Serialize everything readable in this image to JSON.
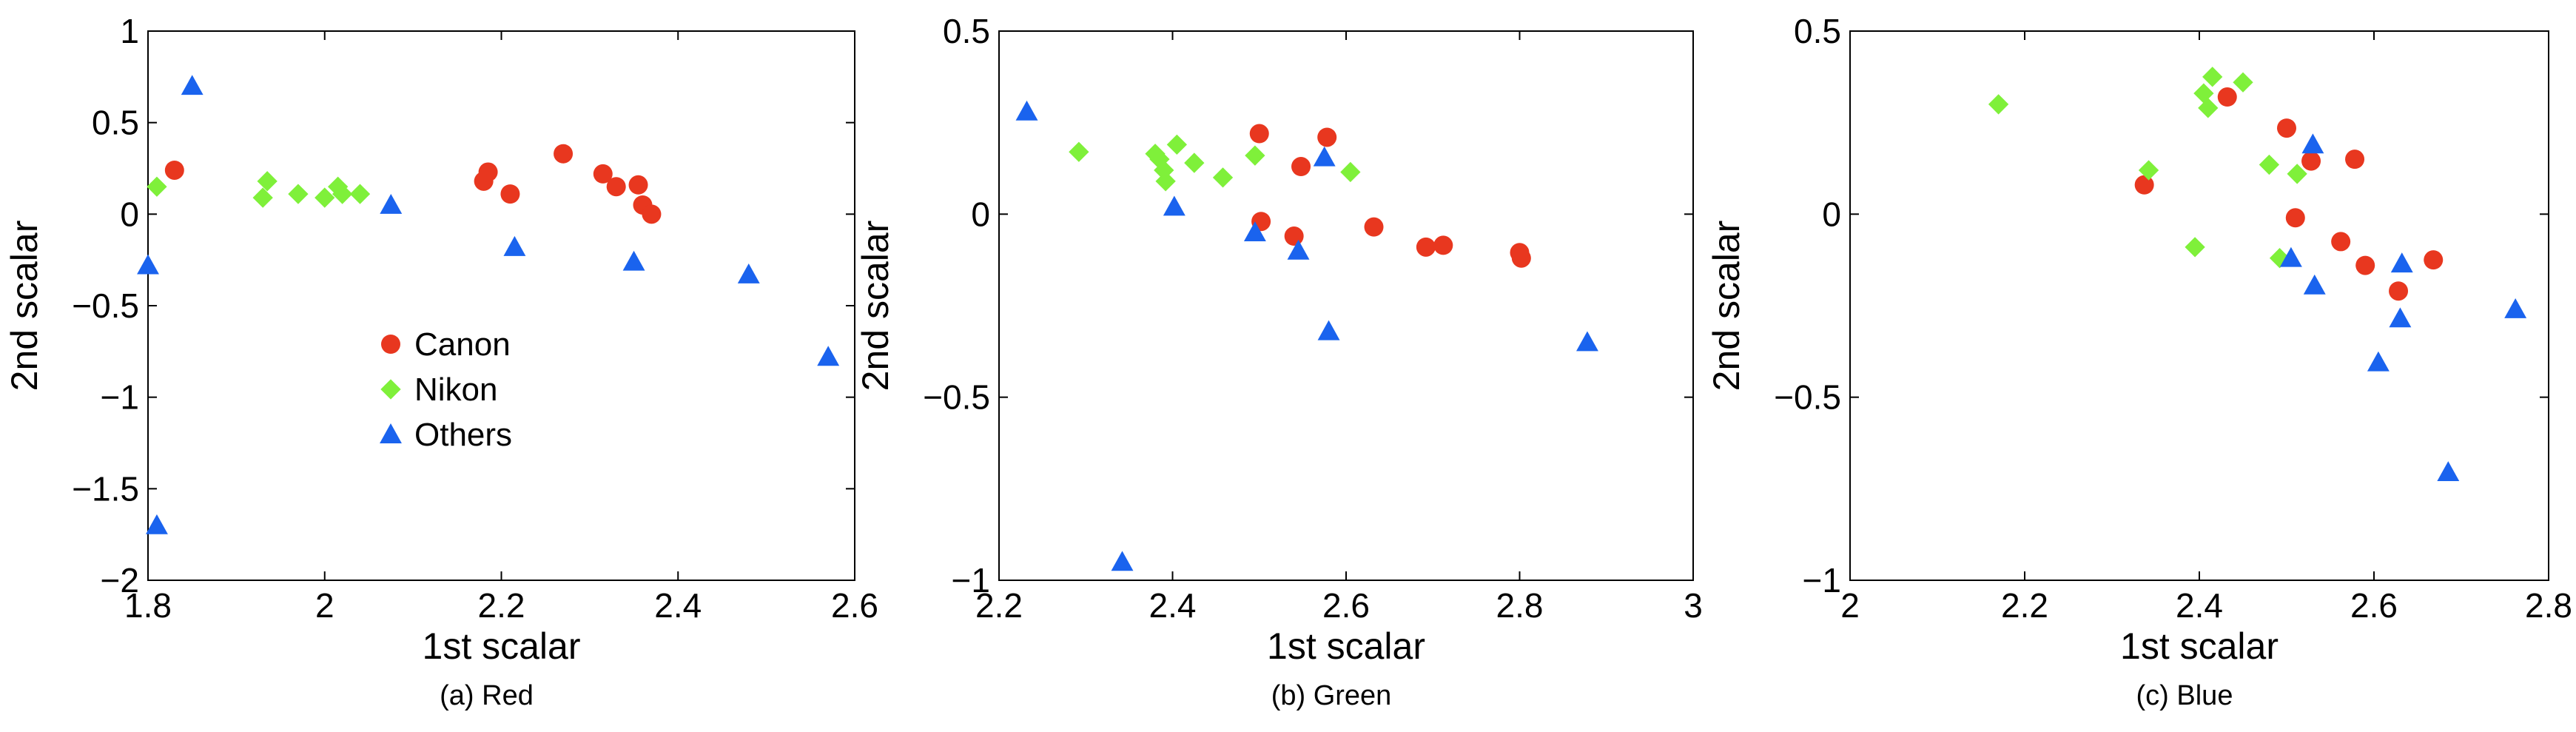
{
  "colors": {
    "canon": "#e8371f",
    "nikon": "#7ff03a",
    "others": "#1a63ee",
    "frame": "#000000",
    "background": "#ffffff"
  },
  "legend": {
    "items": [
      {
        "key": "canon",
        "label": "Canon",
        "marker": "circle"
      },
      {
        "key": "nikon",
        "label": "Nikon",
        "marker": "diamond"
      },
      {
        "key": "others",
        "label": "Others",
        "marker": "triangle"
      }
    ],
    "location": "inside panel (a), lower-middle"
  },
  "chart_data": [
    {
      "type": "scatter",
      "caption": "(a) Red",
      "xlabel": "1st scalar",
      "ylabel": "2nd scalar",
      "xlim": [
        1.8,
        2.6
      ],
      "ylim": [
        -2,
        1
      ],
      "xticks": [
        "1.8",
        "2",
        "2.2",
        "2.4",
        "2.6"
      ],
      "yticks": [
        "−2",
        "−1.5",
        "−1",
        "−0.5",
        "0",
        "0.5",
        "1"
      ],
      "xtick_values": [
        1.8,
        2.0,
        2.2,
        2.4,
        2.6
      ],
      "ytick_values": [
        -2,
        -1.5,
        -1,
        -0.5,
        0,
        0.5,
        1
      ],
      "grid": false,
      "series": [
        {
          "name": "Canon",
          "key": "canon",
          "points": [
            [
              1.83,
              0.24
            ],
            [
              2.18,
              0.18
            ],
            [
              2.185,
              0.23
            ],
            [
              2.21,
              0.11
            ],
            [
              2.27,
              0.33
            ],
            [
              2.315,
              0.22
            ],
            [
              2.33,
              0.15
            ],
            [
              2.355,
              0.16
            ],
            [
              2.36,
              0.05
            ],
            [
              2.37,
              0.0
            ]
          ]
        },
        {
          "name": "Nikon",
          "key": "nikon",
          "points": [
            [
              1.81,
              0.15
            ],
            [
              1.93,
              0.09
            ],
            [
              1.935,
              0.18
            ],
            [
              1.97,
              0.11
            ],
            [
              2.0,
              0.09
            ],
            [
              2.015,
              0.15
            ],
            [
              2.02,
              0.11
            ],
            [
              2.04,
              0.11
            ]
          ]
        },
        {
          "name": "Others",
          "key": "others",
          "points": [
            [
              1.85,
              0.7
            ],
            [
              1.8,
              -0.28
            ],
            [
              1.81,
              -1.7
            ],
            [
              2.075,
              0.05
            ],
            [
              2.215,
              -0.18
            ],
            [
              2.35,
              -0.26
            ],
            [
              2.48,
              -0.33
            ],
            [
              2.57,
              -0.78
            ]
          ]
        }
      ]
    },
    {
      "type": "scatter",
      "caption": "(b) Green",
      "xlabel": "1st scalar",
      "ylabel": "2nd scalar",
      "xlim": [
        2.2,
        3.0
      ],
      "ylim": [
        -1,
        0.5
      ],
      "xticks": [
        "2.2",
        "2.4",
        "2.6",
        "2.8",
        "3"
      ],
      "yticks": [
        "−1",
        "−0.5",
        "0",
        "0.5"
      ],
      "xtick_values": [
        2.2,
        2.4,
        2.6,
        2.8,
        3.0
      ],
      "ytick_values": [
        -1,
        -0.5,
        0,
        0.5
      ],
      "grid": false,
      "series": [
        {
          "name": "Canon",
          "key": "canon",
          "points": [
            [
              2.5,
              0.22
            ],
            [
              2.578,
              0.21
            ],
            [
              2.548,
              0.13
            ],
            [
              2.502,
              -0.02
            ],
            [
              2.54,
              -0.06
            ],
            [
              2.632,
              -0.035
            ],
            [
              2.692,
              -0.09
            ],
            [
              2.712,
              -0.085
            ],
            [
              2.8,
              -0.105
            ],
            [
              2.802,
              -0.12
            ]
          ]
        },
        {
          "name": "Nikon",
          "key": "nikon",
          "points": [
            [
              2.292,
              0.17
            ],
            [
              2.38,
              0.165
            ],
            [
              2.385,
              0.15
            ],
            [
              2.39,
              0.12
            ],
            [
              2.392,
              0.09
            ],
            [
              2.405,
              0.19
            ],
            [
              2.425,
              0.14
            ],
            [
              2.458,
              0.1
            ],
            [
              2.495,
              0.16
            ],
            [
              2.605,
              0.115
            ]
          ]
        },
        {
          "name": "Others",
          "key": "others",
          "points": [
            [
              2.232,
              0.28
            ],
            [
              2.402,
              0.02
            ],
            [
              2.495,
              -0.05
            ],
            [
              2.545,
              -0.1
            ],
            [
              2.575,
              0.155
            ],
            [
              2.58,
              -0.32
            ],
            [
              2.878,
              -0.35
            ],
            [
              2.342,
              -0.95
            ]
          ]
        }
      ]
    },
    {
      "type": "scatter",
      "caption": "(c) Blue",
      "xlabel": "1st scalar",
      "ylabel": "2nd scalar",
      "xlim": [
        2.0,
        2.8
      ],
      "ylim": [
        -1,
        0.5
      ],
      "xticks": [
        "2",
        "2.2",
        "2.4",
        "2.6",
        "2.8"
      ],
      "yticks": [
        "−1",
        "−0.5",
        "0",
        "0.5"
      ],
      "xtick_values": [
        2.0,
        2.2,
        2.4,
        2.6,
        2.8
      ],
      "ytick_values": [
        -1,
        -0.5,
        0,
        0.5
      ],
      "grid": false,
      "series": [
        {
          "name": "Canon",
          "key": "canon",
          "points": [
            [
              2.337,
              0.08
            ],
            [
              2.432,
              0.32
            ],
            [
              2.5,
              0.235
            ],
            [
              2.51,
              -0.01
            ],
            [
              2.528,
              0.145
            ],
            [
              2.562,
              -0.075
            ],
            [
              2.578,
              0.15
            ],
            [
              2.59,
              -0.14
            ],
            [
              2.628,
              -0.21
            ],
            [
              2.668,
              -0.125
            ]
          ]
        },
        {
          "name": "Nikon",
          "key": "nikon",
          "points": [
            [
              2.17,
              0.3
            ],
            [
              2.342,
              0.12
            ],
            [
              2.395,
              -0.09
            ],
            [
              2.405,
              0.33
            ],
            [
              2.41,
              0.29
            ],
            [
              2.415,
              0.375
            ],
            [
              2.45,
              0.36
            ],
            [
              2.48,
              0.135
            ],
            [
              2.492,
              -0.12
            ],
            [
              2.512,
              0.11
            ]
          ]
        },
        {
          "name": "Others",
          "key": "others",
          "points": [
            [
              2.505,
              -0.12
            ],
            [
              2.53,
              0.19
            ],
            [
              2.532,
              -0.195
            ],
            [
              2.605,
              -0.405
            ],
            [
              2.632,
              -0.135
            ],
            [
              2.63,
              -0.285
            ],
            [
              2.685,
              -0.705
            ],
            [
              2.762,
              -0.26
            ]
          ]
        }
      ]
    }
  ]
}
